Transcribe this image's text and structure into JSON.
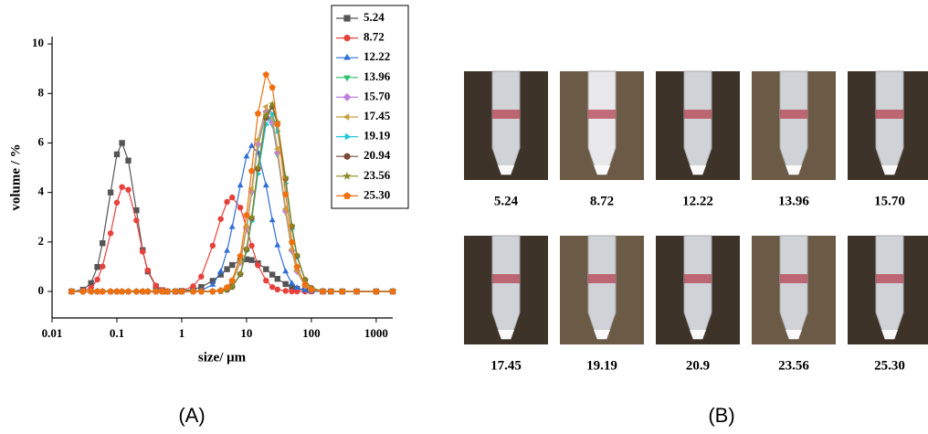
{
  "chart_data": {
    "type": "line",
    "xlabel": "size/ μm",
    "ylabel": "volume / %",
    "log_x": true,
    "x": [
      0.02,
      0.03,
      0.04,
      0.05,
      0.06,
      0.08,
      0.1,
      0.12,
      0.15,
      0.2,
      0.25,
      0.3,
      0.4,
      0.5,
      0.6,
      0.8,
      1,
      1.5,
      2,
      3,
      4,
      5,
      6,
      8,
      10,
      12,
      15,
      20,
      25,
      30,
      40,
      50,
      60,
      80,
      100,
      150,
      200,
      300,
      500,
      1000,
      1800
    ],
    "xlim": [
      0.01,
      1800
    ],
    "xticks": [
      0.01,
      0.1,
      1,
      10,
      100,
      1000
    ],
    "ylim": [
      -1.07,
      10.3
    ],
    "yticks": [
      0,
      2,
      4,
      6,
      8,
      10
    ],
    "series": [
      {
        "name": "5.24",
        "color": "#555555",
        "marker": "square",
        "values": [
          0,
          0.07,
          0.34,
          0.99,
          1.95,
          4.0,
          5.54,
          6,
          5.29,
          3.28,
          1.67,
          0.81,
          0.2,
          0.05,
          0,
          0,
          0.02,
          0.08,
          0.18,
          0.43,
          0.68,
          0.9,
          1.07,
          1.25,
          1.3,
          1.27,
          1.14,
          0.9,
          0.68,
          0.51,
          0.3,
          0.18,
          0.11,
          0.05,
          0.02,
          0,
          0,
          0,
          0,
          0,
          0
        ]
      },
      {
        "name": "8.72",
        "color": "#e8413c",
        "marker": "circle",
        "values": [
          0,
          0.03,
          0.15,
          0.48,
          1.01,
          2.35,
          3.59,
          4.22,
          4.11,
          2.87,
          1.61,
          0.85,
          0.24,
          0.06,
          0.01,
          0,
          0.03,
          0.21,
          0.6,
          1.85,
          2.93,
          3.62,
          3.8,
          3.39,
          2.58,
          1.85,
          1.06,
          0.44,
          0.18,
          0.08,
          0.02,
          0,
          0,
          0,
          0,
          0,
          0,
          0,
          0,
          0,
          0
        ]
      },
      {
        "name": "12.22",
        "color": "#2f6fd6",
        "marker": "triangle-up",
        "values": [
          0,
          0,
          0,
          0,
          0,
          0,
          0,
          0,
          0,
          0,
          0,
          0,
          0,
          0,
          0,
          0,
          0,
          0.01,
          0.04,
          0.27,
          0.8,
          1.64,
          2.6,
          4.28,
          5.45,
          5.88,
          5.6,
          4.28,
          2.87,
          1.86,
          0.8,
          0.33,
          0.15,
          0.04,
          0.01,
          0,
          0,
          0,
          0,
          0,
          0
        ]
      },
      {
        "name": "13.96",
        "color": "#2fbf6a",
        "marker": "triangle-down",
        "values": [
          0,
          0,
          0,
          0,
          0,
          0,
          0,
          0,
          0,
          0,
          0,
          0,
          0,
          0,
          0,
          0,
          0,
          0,
          0,
          0,
          0.04,
          0.14,
          0.36,
          1.17,
          2.52,
          3.98,
          5.88,
          7.17,
          6.74,
          5.53,
          3.2,
          1.63,
          0.81,
          0.22,
          0.06,
          0,
          0,
          0,
          0,
          0,
          0
        ]
      },
      {
        "name": "15.70",
        "color": "#c080e0",
        "marker": "diamond",
        "values": [
          0,
          0,
          0,
          0,
          0,
          0,
          0,
          0,
          0,
          0,
          0,
          0,
          0,
          0,
          0,
          0,
          0,
          0,
          0,
          0,
          0.04,
          0.14,
          0.37,
          1.18,
          2.56,
          4.04,
          5.96,
          7.27,
          6.83,
          5.61,
          3.25,
          1.65,
          0.82,
          0.23,
          0.07,
          0,
          0,
          0,
          0,
          0,
          0
        ]
      },
      {
        "name": "17.45",
        "color": "#c8a040",
        "marker": "triangle-left",
        "values": [
          0,
          0,
          0,
          0,
          0,
          0,
          0,
          0,
          0,
          0,
          0,
          0,
          0,
          0,
          0,
          0,
          0,
          0,
          0,
          0,
          0.04,
          0.14,
          0.38,
          1.22,
          2.63,
          4.15,
          6.13,
          7.47,
          7.02,
          5.76,
          3.34,
          1.7,
          0.85,
          0.23,
          0.07,
          0,
          0,
          0,
          0,
          0,
          0
        ]
      },
      {
        "name": "19.19",
        "color": "#20c8d8",
        "marker": "triangle-right",
        "values": [
          0,
          0,
          0,
          0,
          0,
          0,
          0,
          0,
          0,
          0,
          0,
          0,
          0,
          0,
          0,
          0,
          0,
          0,
          0,
          0,
          0.01,
          0.06,
          0.18,
          0.67,
          1.63,
          2.84,
          4.75,
          6.74,
          7.17,
          6.48,
          4.37,
          2.52,
          1.38,
          0.45,
          0.14,
          0.01,
          0,
          0,
          0,
          0,
          0
        ]
      },
      {
        "name": "20.94",
        "color": "#7a4a3a",
        "marker": "circle",
        "values": [
          0,
          0,
          0,
          0,
          0,
          0,
          0,
          0,
          0,
          0,
          0,
          0,
          0,
          0,
          0,
          0,
          0,
          0,
          0,
          0,
          0.02,
          0.07,
          0.19,
          0.7,
          1.7,
          2.96,
          4.95,
          7.02,
          7.47,
          6.75,
          4.55,
          2.63,
          1.44,
          0.47,
          0.14,
          0.01,
          0,
          0,
          0,
          0,
          0
        ]
      },
      {
        "name": "23.56",
        "color": "#8a8a20",
        "marker": "star",
        "values": [
          0,
          0,
          0,
          0,
          0,
          0,
          0,
          0,
          0,
          0,
          0,
          0,
          0,
          0,
          0,
          0,
          0,
          0,
          0,
          0,
          0.02,
          0.07,
          0.19,
          0.71,
          1.72,
          3.0,
          5.02,
          7.11,
          7.57,
          6.84,
          4.61,
          2.66,
          1.46,
          0.47,
          0.14,
          0.01,
          0,
          0,
          0,
          0,
          0
        ]
      },
      {
        "name": "25.30",
        "color": "#f07010",
        "marker": "pentagon",
        "values": [
          0,
          0,
          0,
          0,
          0,
          0,
          0,
          0,
          0,
          0,
          0,
          0,
          0,
          0,
          0,
          0,
          0,
          0,
          0,
          0,
          0.04,
          0.17,
          0.44,
          1.43,
          3.08,
          4.87,
          7.19,
          8.76,
          8.24,
          6.76,
          3.92,
          1.99,
          0.99,
          0.27,
          0.08,
          0,
          0,
          0,
          0,
          0,
          0
        ]
      }
    ]
  },
  "panel_b": {
    "labels": [
      "5.24",
      "8.72",
      "12.22",
      "13.96",
      "15.70",
      "17.45",
      "19.19",
      "20.9",
      "23.56",
      "25.30"
    ]
  },
  "captions": [
    "(A)",
    "(B)"
  ]
}
